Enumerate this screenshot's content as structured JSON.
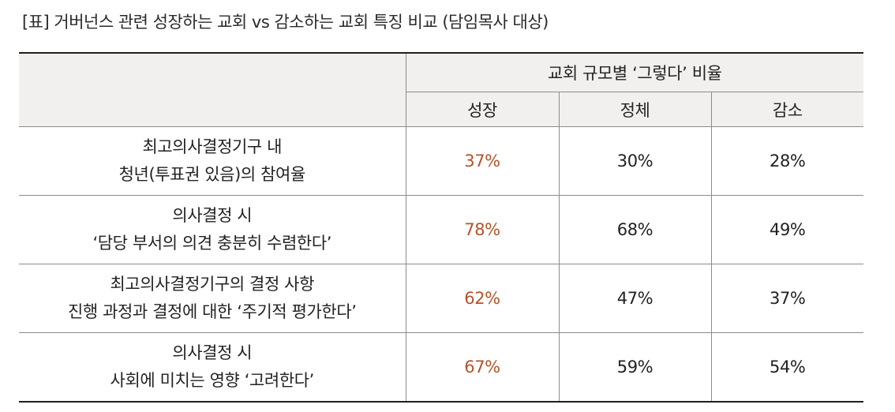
{
  "title": "[표] 거버넌스 관련 성장하는 교회 vs 감소하는 교회 특징 비교 (담임목사 대상)",
  "colors": {
    "growth_accent": "#b5532a",
    "header_bg": "#f2f0ee"
  },
  "header": {
    "group_label": "교회 규모별 ‘그렇다’ 비율",
    "columns": [
      "성장",
      "정체",
      "감소"
    ]
  },
  "rows": [
    {
      "label_lines": [
        "최고의사결정기구 내",
        "청년(투표권 있음)의 참여율"
      ],
      "values": [
        "37%",
        "30%",
        "28%"
      ]
    },
    {
      "label_lines": [
        "의사결정 시",
        "‘담당 부서의 의견 충분히 수렴한다’"
      ],
      "values": [
        "78%",
        "68%",
        "49%"
      ]
    },
    {
      "label_lines": [
        "최고의사결정기구의 결정 사항",
        "진행 과정과 결정에 대한 ‘주기적 평가한다’"
      ],
      "values": [
        "62%",
        "47%",
        "37%"
      ]
    },
    {
      "label_lines": [
        "의사결정 시",
        "사회에 미치는 영향 ‘고려한다’"
      ],
      "values": [
        "67%",
        "59%",
        "54%"
      ]
    }
  ]
}
